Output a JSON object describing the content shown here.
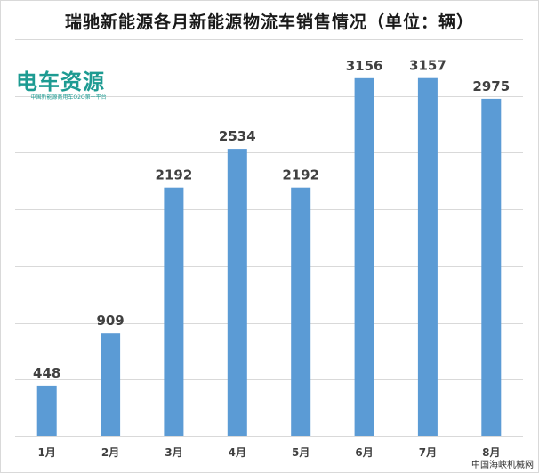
{
  "chart_data": {
    "type": "bar",
    "title": "瑞驰新能源各月新能源物流车销售情况（单位：辆）",
    "categories": [
      "1月",
      "2月",
      "3月",
      "4月",
      "5月",
      "6月",
      "7月",
      "8月"
    ],
    "values": [
      448,
      909,
      2192,
      2534,
      2192,
      3156,
      3157,
      2975
    ],
    "ylim": [
      0,
      3500
    ],
    "grid": true,
    "bar_color": "#5b9bd5",
    "xlabel": "",
    "ylabel": ""
  },
  "logo": {
    "text": "电车资源",
    "tagline": "中国新能源商用车O2O第一平台",
    "color": "#1d9b92"
  },
  "watermark": "中国海峡机械网"
}
